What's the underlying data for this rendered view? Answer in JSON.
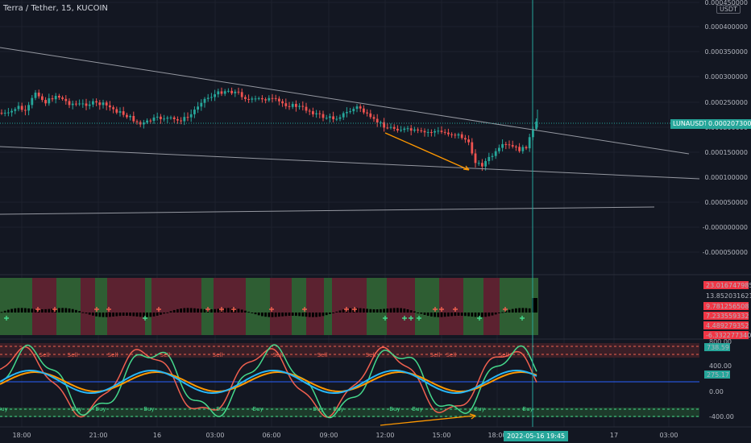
{
  "header": {
    "symbol_title": "Terra / Tether, 15, KUCOIN",
    "currency_badge": "USDT"
  },
  "price_axis": {
    "labels": [
      "0.000450000",
      "0.000400000",
      "0.000350000",
      "0.000300000",
      "0.000250000",
      "0.000200000",
      "0.000150000",
      "0.000100000",
      "0.000050000",
      "-0.000000000",
      "-0.000050000"
    ]
  },
  "ticker_tag": "LUNAUSDT",
  "current_price": "0.000207300",
  "histogram_axis": {
    "labels": [
      "23.016747985",
      "13.852031621",
      "9.781256508",
      "7.233559332",
      "4.489279352",
      "-6.332277340"
    ],
    "colors": [
      "#f23645",
      "#131722",
      "#f23645",
      "#f23645",
      "#f23645",
      "#f23645"
    ]
  },
  "oscillator_axis": {
    "labels": [
      "800.00",
      "738.59",
      "400.00",
      "275.17",
      "0.00",
      "-400.00"
    ]
  },
  "signals": {
    "sell": "Sell",
    "buy": "Buy"
  },
  "time_axis": {
    "labels": [
      "18:00",
      "21:00",
      "16",
      "03:00",
      "06:00",
      "09:00",
      "12:00",
      "15:00",
      "18:00",
      "00",
      "17",
      "03:00"
    ],
    "crosshair": "2022-05-16 19:45"
  },
  "colors": {
    "up": "#26a69a",
    "down": "#ef5350",
    "orange": "#ff9800",
    "bg": "#131722",
    "green_band": "#2e5e33",
    "red_band": "#5c2230",
    "teal": "#26a69a",
    "cyan": "#29b6f6",
    "osc_green": "#45d98c",
    "osc_red": "#f0604f"
  },
  "chart_data": {
    "type": "candlestick",
    "title": "Terra / Tether, 15, KUCOIN",
    "last_price": 0.0002073,
    "y_range": [
      -7e-05,
      0.00045
    ],
    "oscillator_levels": [
      800,
      400,
      0,
      -400
    ],
    "oscillator_last": 738.59,
    "signal_last": 275.17
  }
}
